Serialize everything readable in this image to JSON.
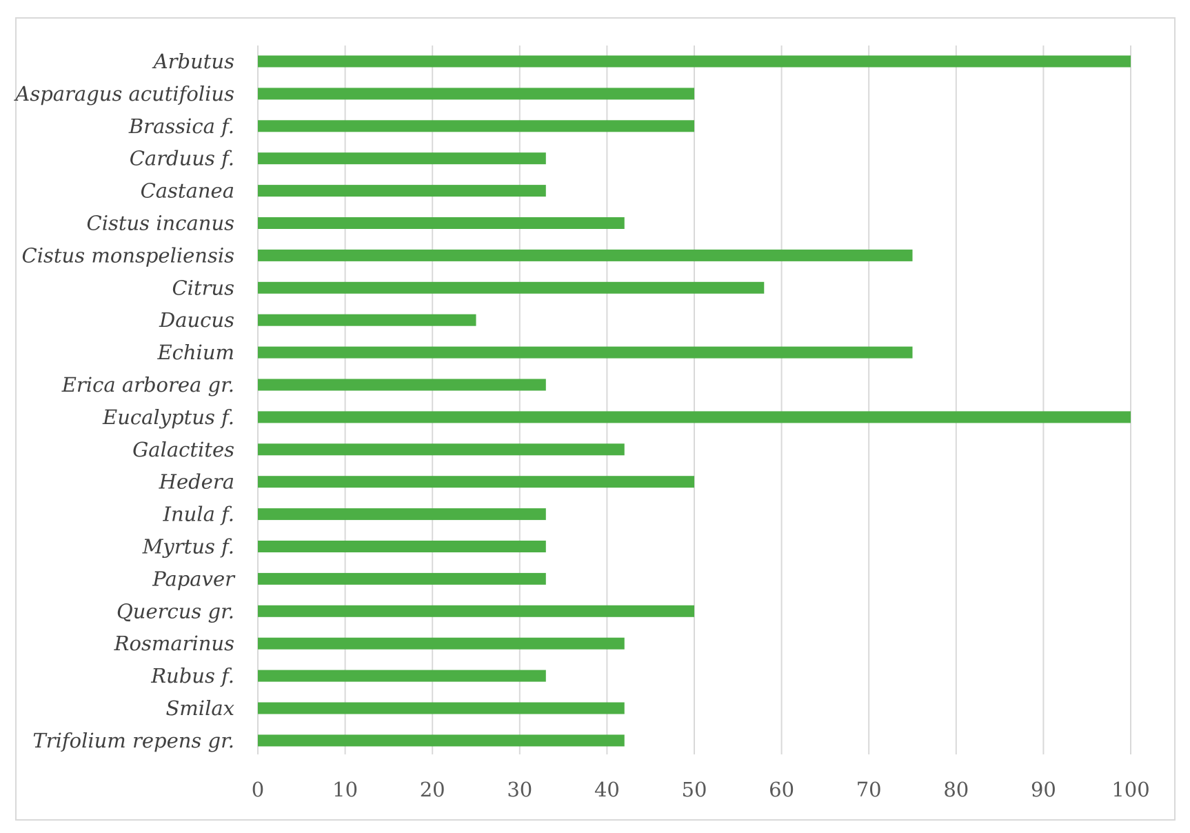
{
  "colors": {
    "bar": "#4caf45",
    "grid": "#d9d9d9",
    "frame": "#d9d9d9"
  },
  "chart_data": {
    "type": "bar",
    "orientation": "horizontal",
    "title": "",
    "xlabel": "",
    "ylabel": "",
    "xlim": [
      0,
      100
    ],
    "xticks": [
      0,
      10,
      20,
      30,
      40,
      50,
      60,
      70,
      80,
      90,
      100
    ],
    "grid": "vertical",
    "legend": "none",
    "categories": [
      "Arbutus",
      "Asparagus acutifolius",
      "Brassica f.",
      "Carduus f.",
      "Castanea",
      "Cistus incanus",
      "Cistus monspeliensis",
      "Citrus",
      "Daucus",
      "Echium",
      "Erica arborea gr.",
      "Eucalyptus f.",
      "Galactites",
      "Hedera",
      "Inula f.",
      "Myrtus f.",
      "Papaver",
      "Quercus gr.",
      "Rosmarinus",
      "Rubus f.",
      "Smilax",
      "Trifolium repens gr."
    ],
    "values": [
      100,
      50,
      50,
      33,
      33,
      42,
      75,
      58,
      25,
      75,
      33,
      100,
      42,
      50,
      33,
      33,
      33,
      50,
      42,
      33,
      42,
      42
    ]
  }
}
